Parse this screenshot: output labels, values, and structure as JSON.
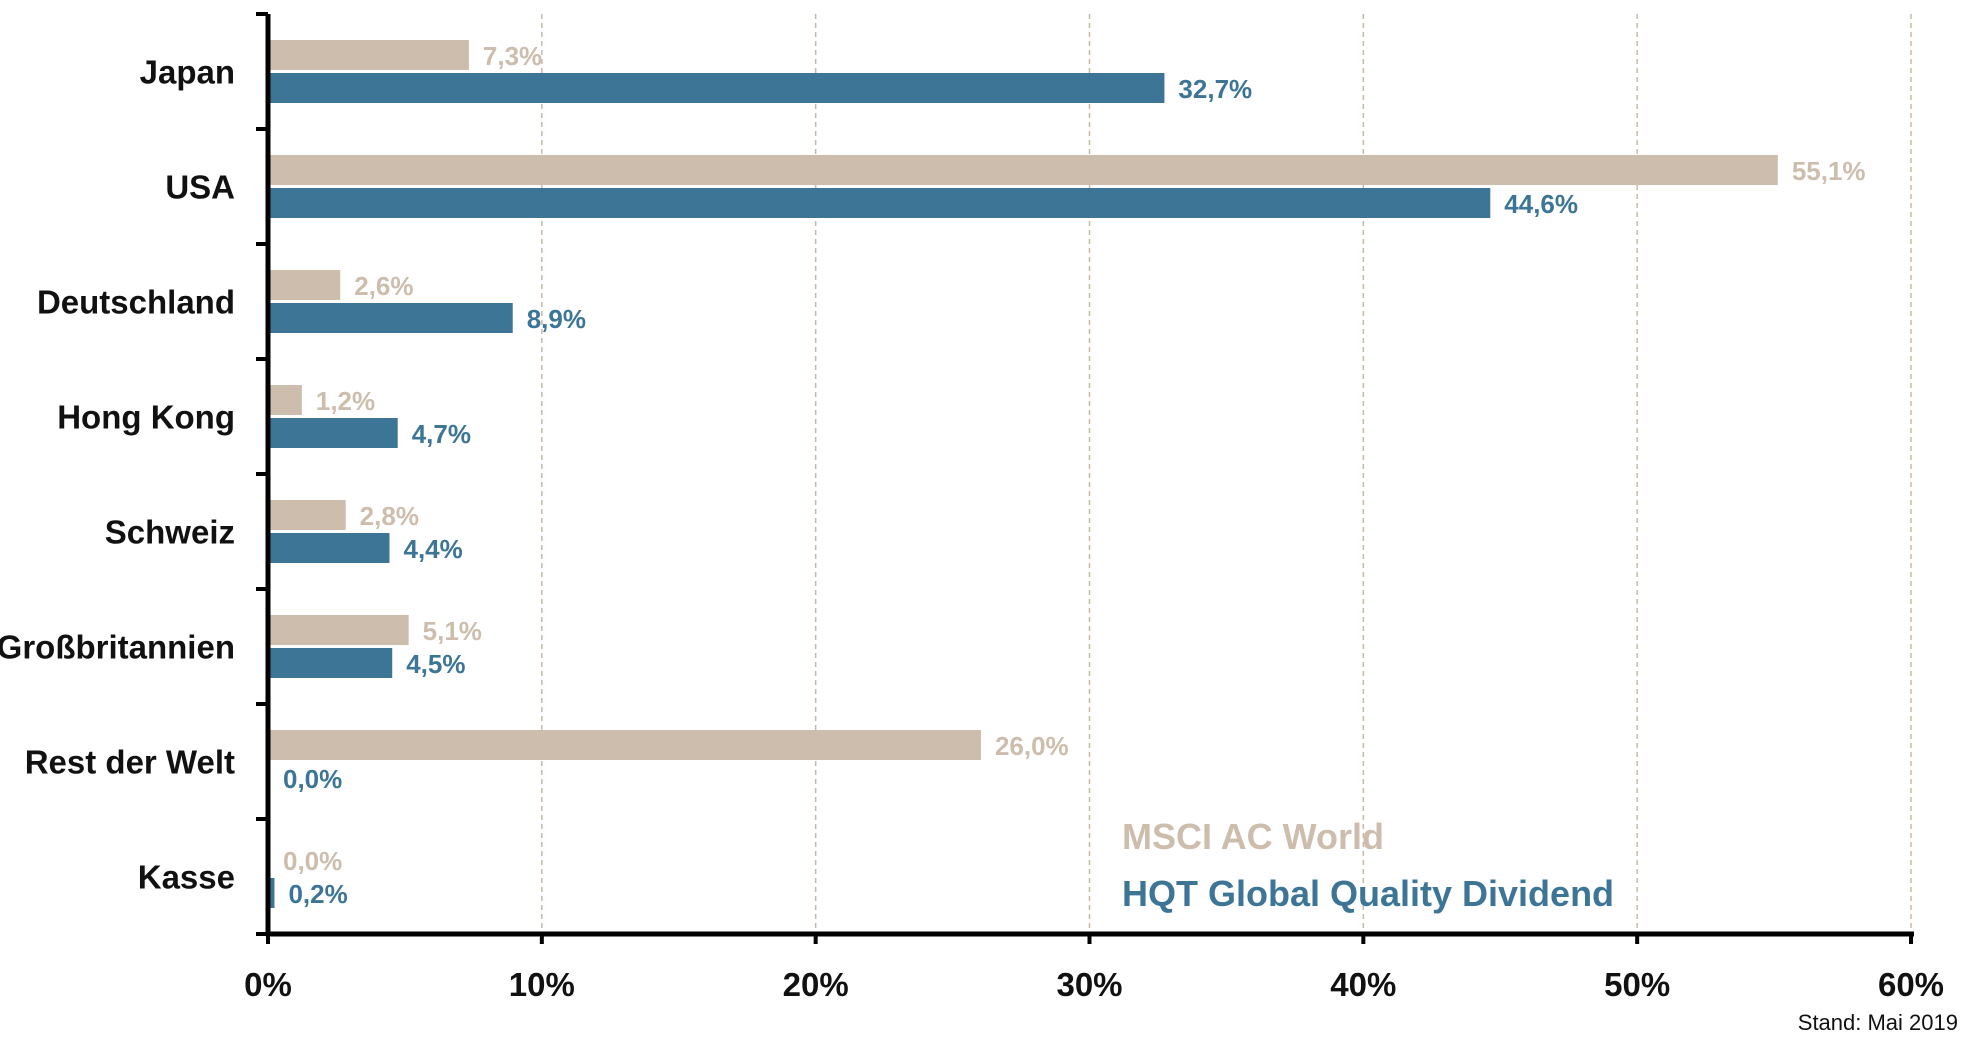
{
  "chart_data": {
    "type": "bar",
    "orientation": "horizontal",
    "categories": [
      "Japan",
      "USA",
      "Deutschland",
      "Hong Kong",
      "Schweiz",
      "Großbritannien",
      "Rest der Welt",
      "Kasse"
    ],
    "series": [
      {
        "name": "MSCI AC World",
        "color": "#cdbdac",
        "values": [
          7.3,
          55.1,
          2.6,
          1.2,
          2.8,
          5.1,
          26.0,
          0.0
        ],
        "labels": [
          "7,3%",
          "55,1%",
          "2,6%",
          "1,2%",
          "2,8%",
          "5,1%",
          "26,0%",
          "0,0%"
        ]
      },
      {
        "name": "HQT Global Quality Dividend",
        "color": "#3d7597",
        "values": [
          32.7,
          44.6,
          8.9,
          4.7,
          4.4,
          4.5,
          0.0,
          0.2
        ],
        "labels": [
          "32,7%",
          "44,6%",
          "8,9%",
          "4,7%",
          "4,4%",
          "4,5%",
          "0,0%",
          "0,2%"
        ]
      }
    ],
    "xlim": [
      0,
      60
    ],
    "xticks": [
      0,
      10,
      20,
      30,
      40,
      50,
      60
    ],
    "xtick_labels": [
      "0%",
      "10%",
      "20%",
      "30%",
      "40%",
      "50%",
      "60%"
    ],
    "grid": "vertical dashed",
    "legend_position": "bottom-right",
    "title": "",
    "xlabel": "",
    "ylabel": ""
  },
  "footnote": "Stand: Mai 2019"
}
